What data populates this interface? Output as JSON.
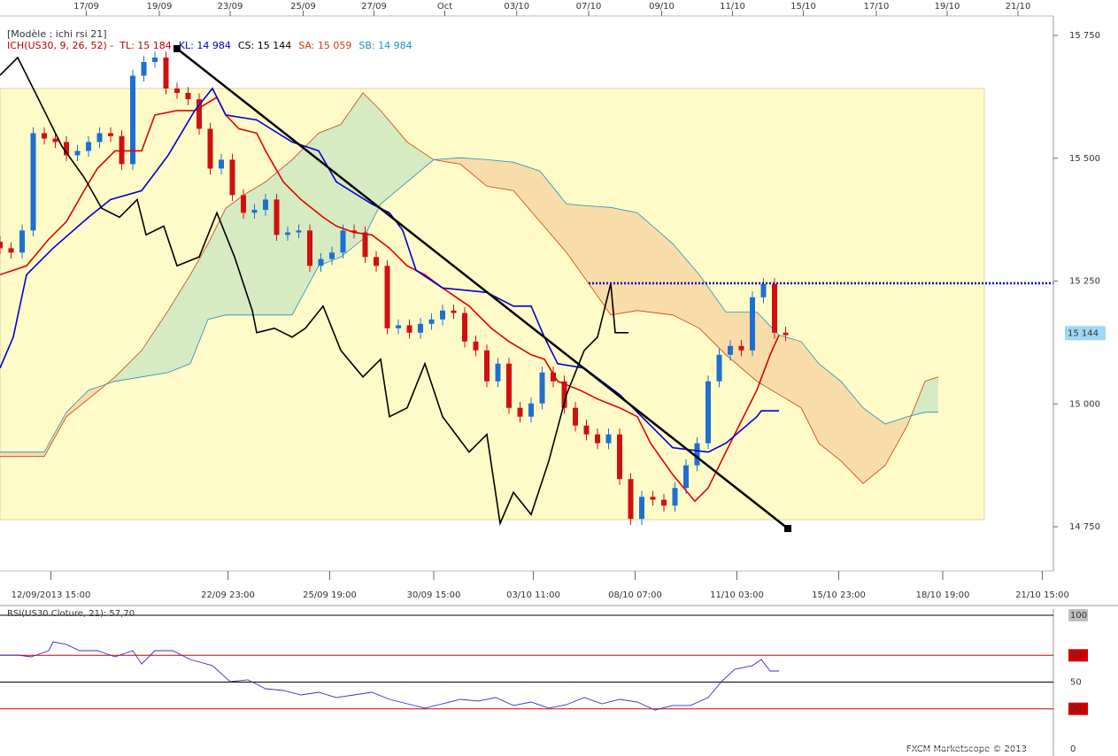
{
  "header": "[Modèle : ichi rsi 21]",
  "footer": "FXCM Marketscope © 2013",
  "chart_data": [
    {
      "type": "candlestick",
      "legend": [
        {
          "text": "ICH(US30, 9, 26, 52) -",
          "color": "#c00000"
        },
        {
          "text": "TL: 15 184",
          "color": "#c00000"
        },
        {
          "text": "KL: 14 984",
          "color": "#0000c0"
        },
        {
          "text": "CS: 15 144",
          "color": "#000000"
        },
        {
          "text": "SA: 15 059",
          "color": "#c84010"
        },
        {
          "text": "SB: 14 984",
          "color": "#2090c0"
        }
      ],
      "up_color": "#1e6fd0",
      "down_color": "#d01010",
      "x": [
        0,
        1,
        2,
        3,
        4,
        5,
        6,
        7,
        8,
        9,
        10,
        11,
        12,
        13,
        14,
        15,
        16,
        17,
        18,
        19,
        20,
        21,
        22,
        23,
        24,
        25,
        26,
        27,
        28,
        29,
        30,
        31,
        32,
        33,
        34,
        35,
        36,
        37,
        38,
        39,
        40,
        41,
        42,
        43,
        44,
        45,
        46,
        47,
        48,
        49,
        50,
        51,
        52,
        53,
        54,
        55,
        56,
        57,
        58,
        59,
        60,
        61,
        62,
        63,
        64,
        65,
        66,
        67,
        68,
        69,
        70,
        71
      ],
      "open": [
        15330,
        15317,
        15308,
        15353,
        15551,
        15540,
        15533,
        15506,
        15515,
        15533,
        15551,
        15545,
        15488,
        15668,
        15696,
        15705,
        15642,
        15633,
        15620,
        15560,
        15479,
        15497,
        15425,
        15389,
        15395,
        15416,
        15344,
        15349,
        15353,
        15281,
        15295,
        15308,
        15353,
        15349,
        15299,
        15281,
        15154,
        15160,
        15145,
        15163,
        15172,
        15190,
        15185,
        15127,
        15109,
        15046,
        15082,
        14992,
        14974,
        15001,
        15064,
        15046,
        14992,
        14956,
        14938,
        14920,
        14938,
        14847,
        14766,
        14811,
        14805,
        14793,
        14829,
        14875,
        14920,
        15046,
        15100,
        15118,
        15109,
        15217,
        15244,
        15145
      ],
      "high": [
        15342,
        15329,
        15365,
        15563,
        15563,
        15552,
        15545,
        15527,
        15545,
        15563,
        15563,
        15557,
        15680,
        15708,
        15717,
        15717,
        15654,
        15645,
        15632,
        15572,
        15509,
        15509,
        15437,
        15407,
        15428,
        15428,
        15361,
        15365,
        15365,
        15307,
        15320,
        15365,
        15365,
        15361,
        15311,
        15293,
        15172,
        15172,
        15175,
        15184,
        15202,
        15202,
        15197,
        15139,
        15121,
        15094,
        15094,
        15004,
        15013,
        15076,
        15076,
        15058,
        15004,
        14968,
        14950,
        14950,
        14950,
        14859,
        14823,
        14823,
        14817,
        14841,
        14887,
        14932,
        15058,
        15112,
        15130,
        15130,
        15229,
        15256,
        15256,
        15157
      ],
      "low": [
        15305,
        15296,
        15296,
        15341,
        15528,
        15521,
        15494,
        15494,
        15503,
        15521,
        15533,
        15476,
        15476,
        15656,
        15684,
        15630,
        15621,
        15608,
        15548,
        15467,
        15467,
        15413,
        15377,
        15377,
        15383,
        15332,
        15332,
        15337,
        15269,
        15269,
        15283,
        15296,
        15337,
        15287,
        15269,
        15142,
        15142,
        15133,
        15133,
        15151,
        15160,
        15173,
        15115,
        15097,
        15034,
        15034,
        14980,
        14962,
        14962,
        14989,
        15034,
        14980,
        14944,
        14926,
        14908,
        14908,
        14835,
        14754,
        14754,
        14793,
        14781,
        14781,
        14817,
        14863,
        14908,
        15034,
        15088,
        15097,
        15097,
        15205,
        15133,
        15128
      ],
      "close": [
        15317,
        15308,
        15353,
        15551,
        15540,
        15533,
        15506,
        15515,
        15533,
        15551,
        15545,
        15488,
        15668,
        15696,
        15705,
        15642,
        15633,
        15620,
        15560,
        15479,
        15497,
        15425,
        15389,
        15395,
        15416,
        15344,
        15349,
        15353,
        15281,
        15295,
        15308,
        15353,
        15349,
        15299,
        15281,
        15154,
        15160,
        15145,
        15163,
        15172,
        15190,
        15185,
        15127,
        15109,
        15046,
        15082,
        14992,
        14974,
        15001,
        15064,
        15046,
        14992,
        14956,
        14938,
        14920,
        14938,
        14847,
        14766,
        14811,
        14805,
        14793,
        14829,
        14875,
        14920,
        15046,
        15100,
        15118,
        15109,
        15217,
        15244,
        15145,
        15140
      ],
      "cloud": {
        "bull_color": "#cfe8c0",
        "bear_color": "#f7d7a4",
        "a_color": "#c84010",
        "b_color": "#2090c0",
        "x": [
          0,
          4,
          6,
          8,
          10.4,
          12.8,
          15.2,
          17.2,
          18.8,
          20.4,
          22,
          24,
          26.4,
          28.8,
          30.8,
          32.8,
          34.4,
          36.8,
          39.2,
          41.6,
          44,
          46.4,
          48.8,
          51.2,
          53.2,
          55.2,
          57.6,
          60.8,
          63.2,
          65.6,
          68.4,
          70.4,
          72.4,
          74,
          76,
          78,
          80,
          82,
          83.6,
          84.8
        ],
        "senkou_a": [
          14893,
          14893,
          14974,
          15010,
          15055,
          15109,
          15190,
          15263,
          15326,
          15398,
          15425,
          15452,
          15497,
          15551,
          15569,
          15633,
          15597,
          15533,
          15497,
          15488,
          15443,
          15434,
          15371,
          15308,
          15245,
          15181,
          15190,
          15181,
          15154,
          15100,
          15046,
          15019,
          14992,
          14920,
          14884,
          14838,
          14875,
          14956,
          15046,
          15055
        ],
        "senkou_b": [
          14902,
          14902,
          14983,
          15028,
          15046,
          15055,
          15064,
          15082,
          15172,
          15181,
          15181,
          15181,
          15181,
          15281,
          15299,
          15335,
          15407,
          15452,
          15497,
          15501,
          15497,
          15492,
          15474,
          15407,
          15403,
          15400,
          15389,
          15326,
          15263,
          15187,
          15187,
          15140,
          15127,
          15082,
          15046,
          14992,
          14959,
          14974,
          14983,
          14983
        ]
      },
      "lines": [
        {
          "color": "#e00000",
          "x": [
            0,
            2.4,
            4.4,
            6,
            7.6,
            8.8,
            10.4,
            12.8,
            14,
            16,
            17.6,
            19.6,
            20.4,
            21.6,
            23.2,
            24,
            25.6,
            27.2,
            29.2,
            30.4,
            32,
            33.6,
            35.2,
            36.8,
            38.4,
            40,
            42.4,
            44.4,
            46,
            48,
            49.2,
            50.4,
            52.4,
            54,
            56,
            57.6,
            58.8,
            60.8,
            62.8,
            64,
            65.6,
            67.2,
            68.4,
            69.6,
            70.4
          ],
          "values": [
            15263,
            15281,
            15335,
            15371,
            15434,
            15479,
            15515,
            15515,
            15588,
            15597,
            15597,
            15624,
            15588,
            15560,
            15551,
            15515,
            15452,
            15416,
            15380,
            15362,
            15349,
            15344,
            15317,
            15281,
            15263,
            15236,
            15199,
            15154,
            15127,
            15100,
            15091,
            15046,
            15028,
            15010,
            14992,
            14974,
            14920,
            14856,
            14802,
            14829,
            14902,
            14974,
            15028,
            15100,
            15140
          ]
        },
        {
          "color": "#0000d0",
          "x": [
            0,
            1.2,
            2.4,
            4.8,
            8,
            10,
            12.8,
            15.2,
            17.6,
            19.2,
            20.4,
            23.2,
            26.4,
            28.8,
            30.4,
            33.6,
            35.2,
            36.4,
            37.6,
            40,
            44,
            46.4,
            48,
            49.2,
            50.4,
            52.8,
            56,
            58.8,
            60.8,
            64,
            65.6,
            68.4,
            68.8,
            70.4
          ],
          "values": [
            15073,
            15136,
            15263,
            15317,
            15380,
            15416,
            15434,
            15506,
            15597,
            15642,
            15588,
            15578,
            15533,
            15515,
            15452,
            15407,
            15389,
            15353,
            15272,
            15236,
            15227,
            15199,
            15199,
            15136,
            15082,
            15073,
            15019,
            14956,
            14911,
            14902,
            14920,
            14974,
            14986,
            14986
          ]
        },
        {
          "color": "#000000",
          "x": [
            0,
            1.6,
            3.6,
            5.6,
            7.6,
            9.2,
            10.8,
            12.4,
            13.2,
            14.8,
            16,
            18,
            19.6,
            21.2,
            22.8,
            23.2,
            24.8,
            26.4,
            27.6,
            29.2,
            30.8,
            32.8,
            34.4,
            35.2,
            36.8,
            38.4,
            40,
            42.4,
            44,
            45.2,
            46.4,
            48,
            49.6,
            51.2,
            52.8,
            54,
            55.2,
            55.6,
            56.8
          ],
          "values": [
            15669,
            15705,
            15615,
            15524,
            15461,
            15398,
            15380,
            15416,
            15344,
            15362,
            15281,
            15299,
            15389,
            15299,
            15190,
            15145,
            15154,
            15136,
            15154,
            15199,
            15109,
            15055,
            15091,
            14974,
            14992,
            15082,
            14974,
            14902,
            14938,
            14757,
            14820,
            14775,
            14884,
            15019,
            15109,
            15136,
            15245,
            15145,
            15145
          ]
        }
      ],
      "last_price": {
        "value": 15144,
        "label": "15 144"
      },
      "xlim": [
        0,
        95.2
      ],
      "ylim": [
        14660,
        15768
      ],
      "yticks": [
        {
          "value": 14750,
          "label": "14 750"
        },
        {
          "value": 15000,
          "label": "15 000"
        },
        {
          "value": 15250,
          "label": "15 250"
        },
        {
          "value": 15500,
          "label": "15 500"
        },
        {
          "value": 15750,
          "label": "15 750"
        }
      ],
      "top_xticks": [
        {
          "value": 7.8,
          "label": "17/09"
        },
        {
          "value": 14.4,
          "label": "19/09"
        },
        {
          "value": 20.8,
          "label": "23/09"
        },
        {
          "value": 27.4,
          "label": "25/09"
        },
        {
          "value": 33.8,
          "label": "27/09"
        },
        {
          "value": 40.2,
          "label": "Oct"
        },
        {
          "value": 46.7,
          "label": "03/10"
        },
        {
          "value": 53.2,
          "label": "07/10"
        },
        {
          "value": 59.8,
          "label": "09/10"
        },
        {
          "value": 66.2,
          "label": "11/10"
        },
        {
          "value": 72.6,
          "label": "15/10"
        },
        {
          "value": 79.2,
          "label": "17/10"
        },
        {
          "value": 85.6,
          "label": "19/10"
        },
        {
          "value": 92,
          "label": "21/10"
        }
      ],
      "xticks": [
        {
          "value": 4.6,
          "label": "12/09/2013 15:00"
        },
        {
          "value": 20.6,
          "label": "22/09 23:00"
        },
        {
          "value": 29.8,
          "label": "25/09 19:00"
        },
        {
          "value": 39.2,
          "label": "30/09 15:00"
        },
        {
          "value": 48.2,
          "label": "03/10 11:00"
        },
        {
          "value": 57.4,
          "label": "08/10 07:00"
        },
        {
          "value": 66.6,
          "label": "11/10 03:00"
        },
        {
          "value": 75.8,
          "label": "15/10 23:00"
        },
        {
          "value": 85.2,
          "label": "18/10 19:00"
        },
        {
          "value": 94.2,
          "label": "21/10 15:00"
        }
      ]
    },
    {
      "type": "line",
      "title": "RSI(US30.Cloture, 21): 57,70",
      "color": "#3030c0",
      "x": [
        0,
        1.6,
        2.8,
        4.4,
        4.8,
        6,
        7.2,
        8.8,
        10.4,
        12,
        12.8,
        14,
        15.6,
        17.2,
        19.2,
        20.8,
        22.4,
        24,
        25.6,
        27.2,
        28.8,
        30.4,
        32,
        33.6,
        35.2,
        36.8,
        38.4,
        40,
        41.6,
        43.2,
        44.8,
        46.4,
        48,
        49.6,
        51.2,
        52.8,
        54.4,
        56,
        57.6,
        59.2,
        60.8,
        62.4,
        64,
        65.2,
        66.4,
        68,
        68.8,
        69.6,
        70.4
      ],
      "values": [
        70.2,
        70.2,
        68.9,
        73.5,
        80.1,
        78.1,
        73.5,
        73.5,
        68.9,
        73.5,
        63.6,
        73.5,
        73.5,
        66.9,
        62.3,
        50.3,
        51.7,
        45.0,
        43.7,
        40.4,
        42.4,
        38.4,
        40.4,
        42.4,
        37.1,
        33.8,
        30.5,
        33.8,
        37.1,
        35.8,
        38.4,
        32.5,
        35.1,
        30.5,
        33.1,
        38.4,
        33.8,
        37.1,
        35.1,
        29.1,
        32.5,
        32.5,
        38.4,
        50.3,
        59.6,
        62.3,
        66.9,
        58.3,
        58.3
      ],
      "xlim": [
        0,
        95.2
      ],
      "ylim": [
        0,
        100
      ],
      "yticks": [
        0,
        30,
        50,
        70,
        100
      ],
      "level_colors": [
        "#ffffff",
        "#d00000",
        "#000000",
        "#d00000",
        "#000000"
      ],
      "tick_label_backgrounds": [
        "#ffffff",
        "#d00000",
        "#ffffff",
        "#d00000",
        "#c0c0c0"
      ]
    }
  ]
}
